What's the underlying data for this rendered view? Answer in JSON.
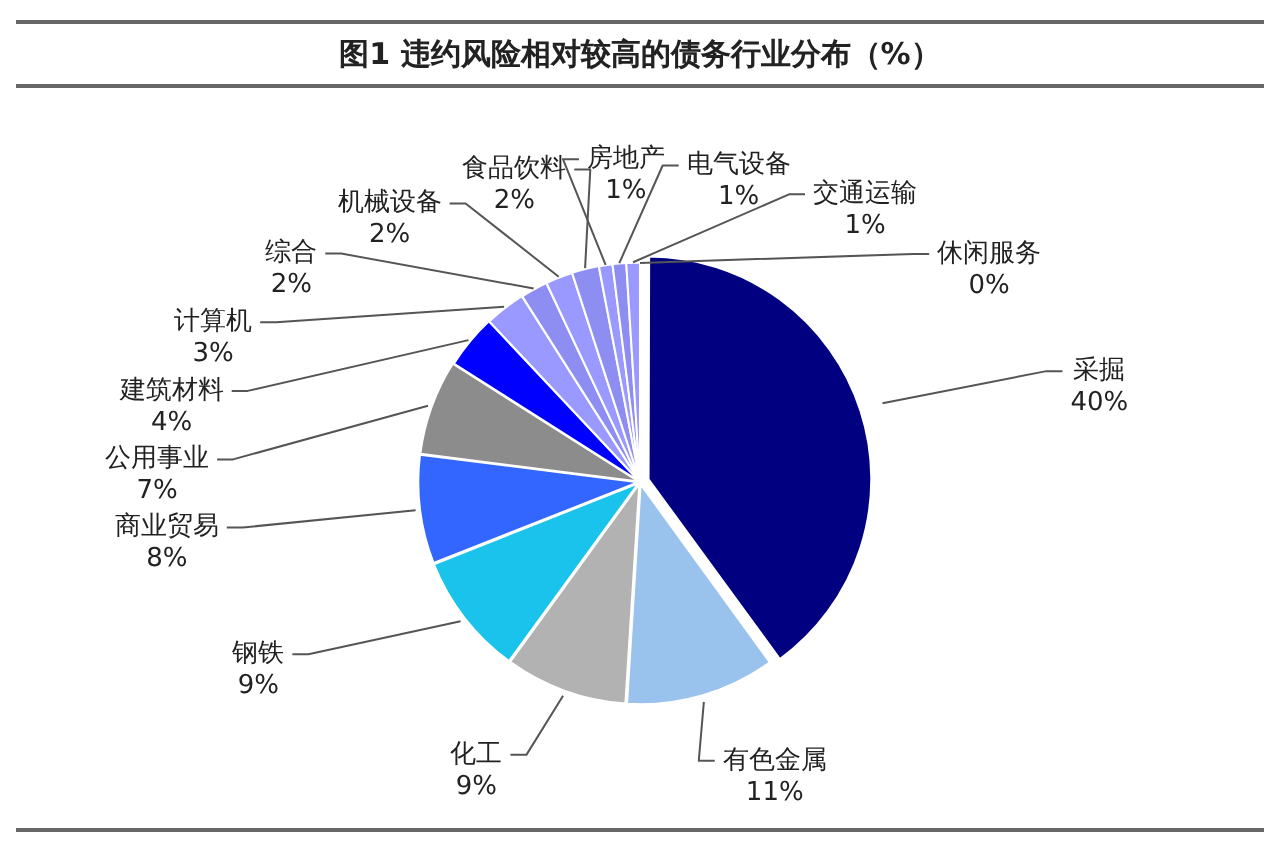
{
  "chart_data": {
    "type": "pie",
    "title": "图1 违约风险相对较高的债务行业分布（%）",
    "categories": [
      "采掘",
      "有色金属",
      "化工",
      "钢铁",
      "商业贸易",
      "公用事业",
      "建筑材料",
      "计算机",
      "综合",
      "机械设备",
      "食品饮料",
      "房地产",
      "电气设备",
      "交通运输",
      "休闲服务"
    ],
    "values": [
      40,
      11,
      9,
      9,
      8,
      7,
      4,
      3,
      2,
      2,
      2,
      1,
      1,
      1,
      0
    ],
    "value_labels": [
      "40%",
      "11%",
      "9%",
      "9%",
      "8%",
      "7%",
      "4%",
      "3%",
      "2%",
      "2%",
      "2%",
      "1%",
      "1%",
      "1%",
      "0%"
    ],
    "colors": [
      "#000080",
      "#99c2ec",
      "#b2b2b2",
      "#19c3ec",
      "#3366ff",
      "#8c8c8c",
      "#0000ff",
      "#9999ff",
      "#8e8ef2",
      "#9999ff",
      "#8e8ef2",
      "#9999ff",
      "#8e8ef2",
      "#9999ff",
      "#8e8ef2"
    ],
    "legend": false
  }
}
